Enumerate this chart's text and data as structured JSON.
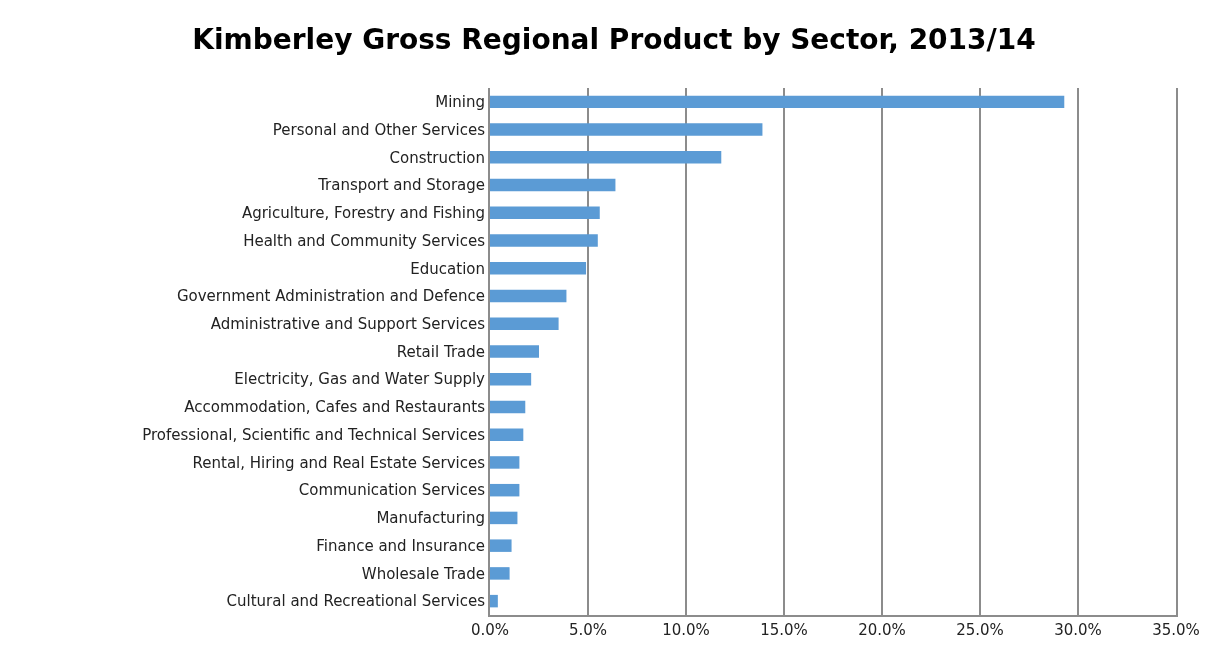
{
  "chart_data": {
    "type": "bar",
    "orientation": "horizontal",
    "title": "Kimberley Gross Regional Product by Sector, 2013/14",
    "categories": [
      "Mining",
      "Personal and Other Services",
      "Construction",
      "Transport and Storage",
      "Agriculture, Forestry and Fishing",
      "Health and Community Services",
      "Education",
      "Government Administration and Defence",
      "Administrative and Support Services",
      "Retail Trade",
      "Electricity, Gas and Water Supply",
      "Accommodation, Cafes and Restaurants",
      "Professional, Scientific and Technical Services",
      "Rental, Hiring and Real Estate Services",
      "Communication Services",
      "Manufacturing",
      "Finance and Insurance",
      "Wholesale Trade",
      "Cultural and Recreational Services"
    ],
    "values": [
      29.3,
      13.9,
      11.8,
      6.4,
      5.6,
      5.5,
      4.9,
      3.9,
      3.5,
      2.5,
      2.1,
      1.8,
      1.7,
      1.5,
      1.5,
      1.4,
      1.1,
      1.0,
      0.4
    ],
    "color": "#5b9bd5",
    "xlim": [
      0,
      35
    ],
    "xticks": [
      {
        "value": 0,
        "label": "0.0%"
      },
      {
        "value": 5,
        "label": "5.0%"
      },
      {
        "value": 10,
        "label": "10.0%"
      },
      {
        "value": 15,
        "label": "15.0%"
      },
      {
        "value": 20,
        "label": "20.0%"
      },
      {
        "value": 25,
        "label": "25.0%"
      },
      {
        "value": 30,
        "label": "30.0%"
      },
      {
        "value": 35,
        "label": "35.0%"
      }
    ],
    "grid": "x"
  }
}
